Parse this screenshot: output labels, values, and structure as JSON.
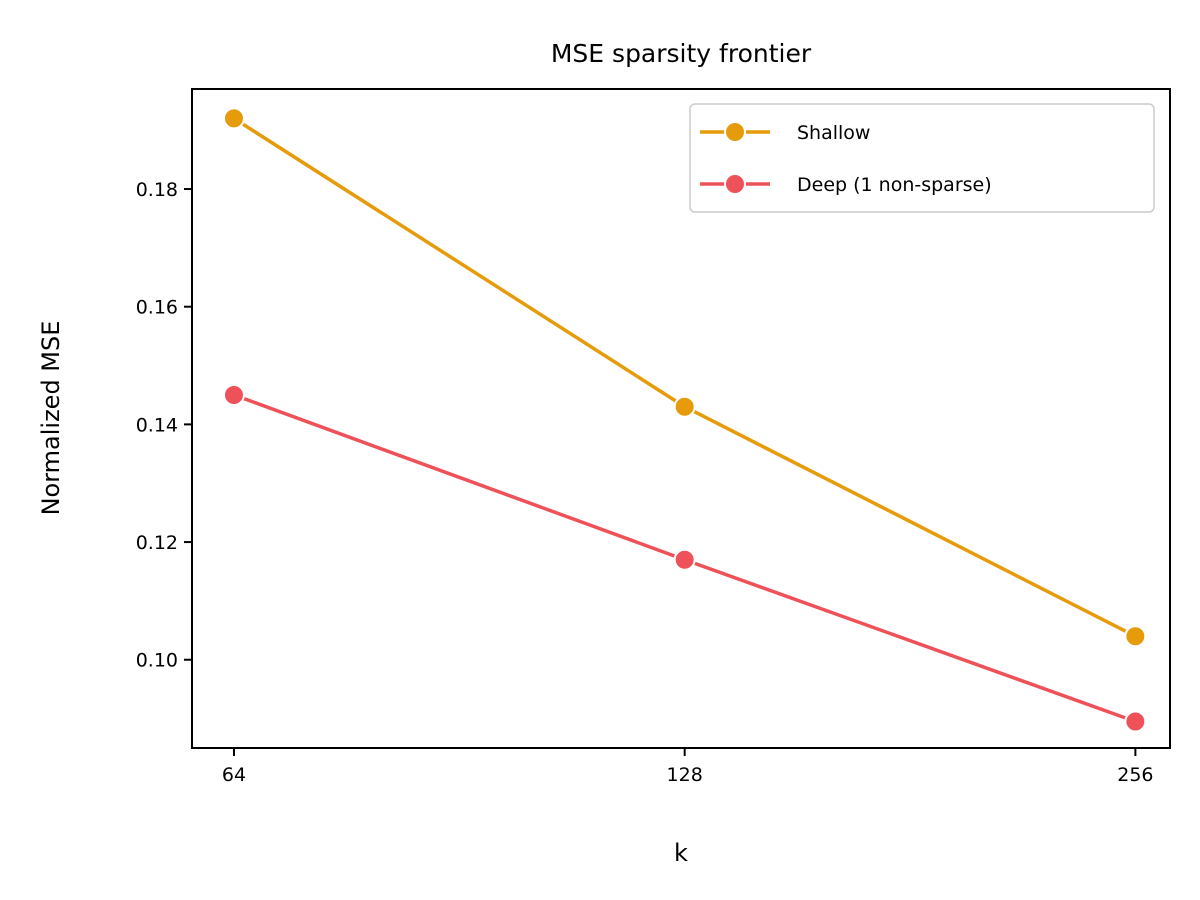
{
  "chart_data": {
    "type": "line",
    "title": "MSE sparsity frontier",
    "xlabel": "k",
    "ylabel": "Normalized MSE",
    "x": [
      64,
      128,
      256
    ],
    "x_tick_labels": [
      "64",
      "128",
      "256"
    ],
    "x_scale": "log2",
    "xlim": [
      60,
      270
    ],
    "ylim": [
      0.085,
      0.197
    ],
    "y_ticks": [
      0.1,
      0.12,
      0.14,
      0.16,
      0.18
    ],
    "y_tick_labels": [
      "0.10",
      "0.12",
      "0.14",
      "0.16",
      "0.18"
    ],
    "grid": false,
    "legend_position": "top-right",
    "series": [
      {
        "name": "Shallow",
        "values": [
          0.192,
          0.143,
          0.104
        ],
        "color": "#E69B0B",
        "marker": "circle"
      },
      {
        "name": "Deep (1 non-sparse)",
        "values": [
          0.145,
          0.117,
          0.0895
        ],
        "color": "#EF5159",
        "marker": "circle"
      }
    ]
  }
}
